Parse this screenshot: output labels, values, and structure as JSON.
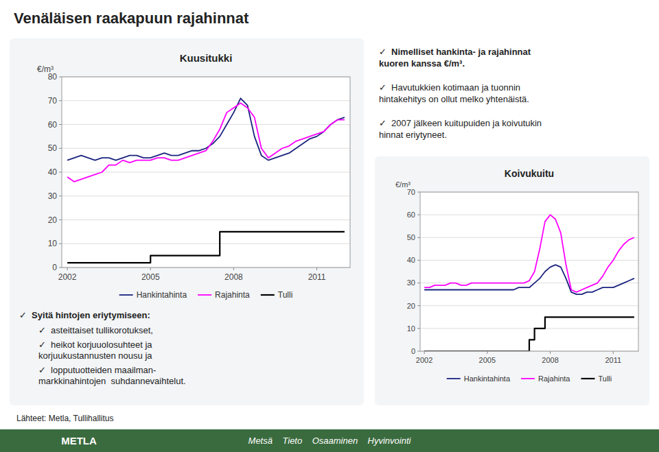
{
  "title": "Venäläisen raakapuun rajahinnat",
  "annotations": [
    "✓  Nimelliset hankinta- ja rajahinnat\nkuoren kanssa €/m³.",
    "✓  Havutukkien kotimaan ja tuonnin\nhintakehitys on ollut melko yhtenäistä.",
    "✓  2007 jälkeen kuitupuiden ja koivutukin\nhinnat eriytyneet.",
    "✓  Syitä hintojen eriytymiseen:",
    "✓  asteittaiset tullikorotukset,",
    "✓  heikot korjuuolosuhteet ja\nkorjuukustannusten nousu ja",
    "✓  lopputuotteiden maailman-\nmarkkinahintojen  suhdannevaihtelut.",
    "Lähteet: Metla, Tullihallitus",
    "Metsä    Tieto    Osaaminen    Hyvinvointi",
    "METLA"
  ],
  "chart_data": [
    {
      "type": "line",
      "title": "Kuusitukki",
      "y_label": "€/m³",
      "xlim": [
        2001.8,
        2012.2
      ],
      "xticks": [
        2002,
        2005,
        2008,
        2011
      ],
      "ylim": [
        0,
        80
      ],
      "yticks": [
        0,
        10,
        20,
        30,
        40,
        50,
        60,
        70,
        80
      ],
      "grid": true,
      "legend": "bottom",
      "series": [
        {
          "name": "Hankintahinta",
          "color": "#1a237e",
          "x": [
            2002.0,
            2002.25,
            2002.5,
            2002.75,
            2003.0,
            2003.25,
            2003.5,
            2003.75,
            2004.0,
            2004.25,
            2004.5,
            2004.75,
            2005.0,
            2005.25,
            2005.5,
            2005.75,
            2006.0,
            2006.25,
            2006.5,
            2006.75,
            2007.0,
            2007.25,
            2007.5,
            2007.75,
            2008.0,
            2008.25,
            2008.5,
            2008.75,
            2009.0,
            2009.25,
            2009.5,
            2009.75,
            2010.0,
            2010.25,
            2010.5,
            2010.75,
            2011.0,
            2011.25,
            2011.5,
            2011.75,
            2012.0
          ],
          "values": [
            45,
            46,
            47,
            46,
            45,
            46,
            46,
            45,
            46,
            47,
            47,
            46,
            46,
            47,
            48,
            47,
            47,
            48,
            49,
            49,
            50,
            52,
            55,
            60,
            65,
            71,
            68,
            55,
            47,
            45,
            46,
            47,
            48,
            50,
            52,
            54,
            55,
            57,
            60,
            62,
            63
          ]
        },
        {
          "name": "Rajahinta",
          "color": "#ff00ff",
          "x": [
            2002.0,
            2002.25,
            2002.5,
            2002.75,
            2003.0,
            2003.25,
            2003.5,
            2003.75,
            2004.0,
            2004.25,
            2004.5,
            2004.75,
            2005.0,
            2005.25,
            2005.5,
            2005.75,
            2006.0,
            2006.25,
            2006.5,
            2006.75,
            2007.0,
            2007.25,
            2007.5,
            2007.75,
            2008.0,
            2008.25,
            2008.5,
            2008.75,
            2009.0,
            2009.25,
            2009.5,
            2009.75,
            2010.0,
            2010.25,
            2010.5,
            2010.75,
            2011.0,
            2011.25,
            2011.5,
            2011.75,
            2012.0
          ],
          "values": [
            38,
            36,
            37,
            38,
            39,
            40,
            43,
            43,
            45,
            44,
            45,
            45,
            45,
            46,
            46,
            45,
            45,
            46,
            47,
            48,
            49,
            53,
            58,
            65,
            67,
            69,
            67,
            63,
            50,
            46,
            48,
            50,
            51,
            53,
            54,
            55,
            56,
            57,
            60,
            62,
            62
          ]
        },
        {
          "name": "Tulli",
          "color": "#000000",
          "type": "step",
          "x": [
            2002.0,
            2002.5,
            2002.5,
            2005.0,
            2005.0,
            2007.0,
            2007.0,
            2007.5,
            2007.5,
            2008.0,
            2008.0,
            2012.0
          ],
          "values": [
            2,
            2,
            2,
            2,
            5,
            5,
            5,
            5,
            15,
            15,
            15,
            15
          ]
        }
      ]
    },
    {
      "type": "line",
      "title": "Koivukuitu",
      "y_label": "€/m³",
      "xlim": [
        2001.8,
        2012.2
      ],
      "xticks": [
        2002,
        2005,
        2008,
        2011
      ],
      "ylim": [
        0,
        70
      ],
      "yticks": [
        0,
        10,
        20,
        30,
        40,
        50,
        60,
        70
      ],
      "grid": true,
      "legend": "bottom",
      "series": [
        {
          "name": "Hankintahinta",
          "color": "#1a237e",
          "x": [
            2002.0,
            2002.25,
            2002.5,
            2002.75,
            2003.0,
            2003.25,
            2003.5,
            2003.75,
            2004.0,
            2004.25,
            2004.5,
            2004.75,
            2005.0,
            2005.25,
            2005.5,
            2005.75,
            2006.0,
            2006.25,
            2006.5,
            2006.75,
            2007.0,
            2007.25,
            2007.5,
            2007.75,
            2008.0,
            2008.25,
            2008.5,
            2008.75,
            2009.0,
            2009.25,
            2009.5,
            2009.75,
            2010.0,
            2010.25,
            2010.5,
            2010.75,
            2011.0,
            2011.25,
            2011.5,
            2011.75,
            2012.0
          ],
          "values": [
            27,
            27,
            27,
            27,
            27,
            27,
            27,
            27,
            27,
            27,
            27,
            27,
            27,
            27,
            27,
            27,
            27,
            27,
            28,
            28,
            28,
            30,
            32,
            35,
            37,
            38,
            37,
            32,
            26,
            25,
            25,
            26,
            26,
            27,
            28,
            28,
            28,
            29,
            30,
            31,
            32
          ]
        },
        {
          "name": "Rajahinta",
          "color": "#ff00ff",
          "x": [
            2002.0,
            2002.25,
            2002.5,
            2002.75,
            2003.0,
            2003.25,
            2003.5,
            2003.75,
            2004.0,
            2004.25,
            2004.5,
            2004.75,
            2005.0,
            2005.25,
            2005.5,
            2005.75,
            2006.0,
            2006.25,
            2006.5,
            2006.75,
            2007.0,
            2007.25,
            2007.5,
            2007.75,
            2008.0,
            2008.25,
            2008.5,
            2008.75,
            2009.0,
            2009.25,
            2009.5,
            2009.75,
            2010.0,
            2010.25,
            2010.5,
            2010.75,
            2011.0,
            2011.25,
            2011.5,
            2011.75,
            2012.0
          ],
          "values": [
            28,
            28,
            29,
            29,
            29,
            30,
            30,
            29,
            29,
            30,
            30,
            30,
            30,
            30,
            30,
            30,
            30,
            30,
            30,
            30,
            31,
            35,
            45,
            57,
            60,
            58,
            52,
            38,
            27,
            26,
            27,
            28,
            29,
            30,
            33,
            37,
            40,
            44,
            47,
            49,
            50
          ]
        },
        {
          "name": "Tulli",
          "color": "#000000",
          "type": "step",
          "x": [
            2002.0,
            2007.0,
            2007.0,
            2007.25,
            2007.25,
            2007.75,
            2007.75,
            2012.0
          ],
          "values": [
            0,
            0,
            5,
            5,
            10,
            10,
            15,
            15
          ]
        }
      ]
    }
  ]
}
